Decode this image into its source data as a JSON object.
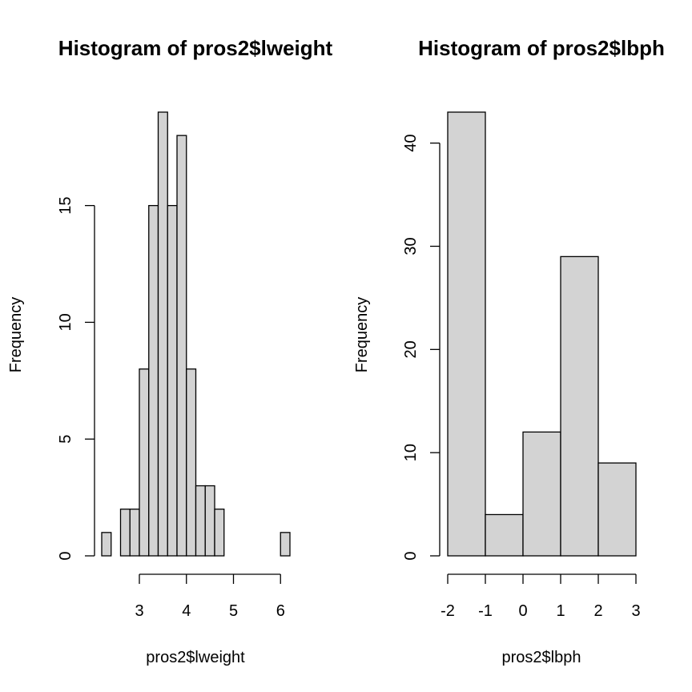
{
  "chart_data": [
    {
      "type": "bar",
      "title": "Histogram of pros2$lweight",
      "xlabel": "pros2$lweight",
      "ylabel": "Frequency",
      "bin_edges": [
        2.2,
        2.4,
        2.6,
        2.8,
        3.0,
        3.2,
        3.4,
        3.6,
        3.8,
        4.0,
        4.2,
        4.4,
        4.6,
        4.8,
        5.0,
        5.2,
        5.4,
        5.6,
        5.8,
        6.0,
        6.2
      ],
      "values": [
        1,
        0,
        2,
        2,
        8,
        15,
        19,
        15,
        18,
        8,
        3,
        3,
        2,
        0,
        0,
        0,
        0,
        0,
        0,
        1
      ],
      "xticks": [
        3,
        4,
        5,
        6
      ],
      "xtick_labels": [
        "3",
        "4",
        "5",
        "6"
      ],
      "yticks": [
        0,
        5,
        10,
        15
      ],
      "ytick_labels": [
        "0",
        "5",
        "10",
        "15"
      ],
      "xlim": [
        2.2,
        6.2
      ],
      "ylim": [
        0,
        19
      ]
    },
    {
      "type": "bar",
      "title": "Histogram of pros2$lbph",
      "xlabel": "pros2$lbph",
      "ylabel": "Frequency",
      "bin_edges": [
        -2,
        -1,
        0,
        1,
        2,
        3
      ],
      "values": [
        43,
        4,
        12,
        29,
        9
      ],
      "xticks": [
        -2,
        -1,
        0,
        1,
        2,
        3
      ],
      "xtick_labels": [
        "-2",
        "-1",
        "0",
        "1",
        "2",
        "3"
      ],
      "yticks": [
        0,
        10,
        20,
        30,
        40
      ],
      "ytick_labels": [
        "0",
        "10",
        "20",
        "30",
        "40"
      ],
      "xlim": [
        -2,
        3
      ],
      "ylim": [
        0,
        43
      ]
    }
  ]
}
